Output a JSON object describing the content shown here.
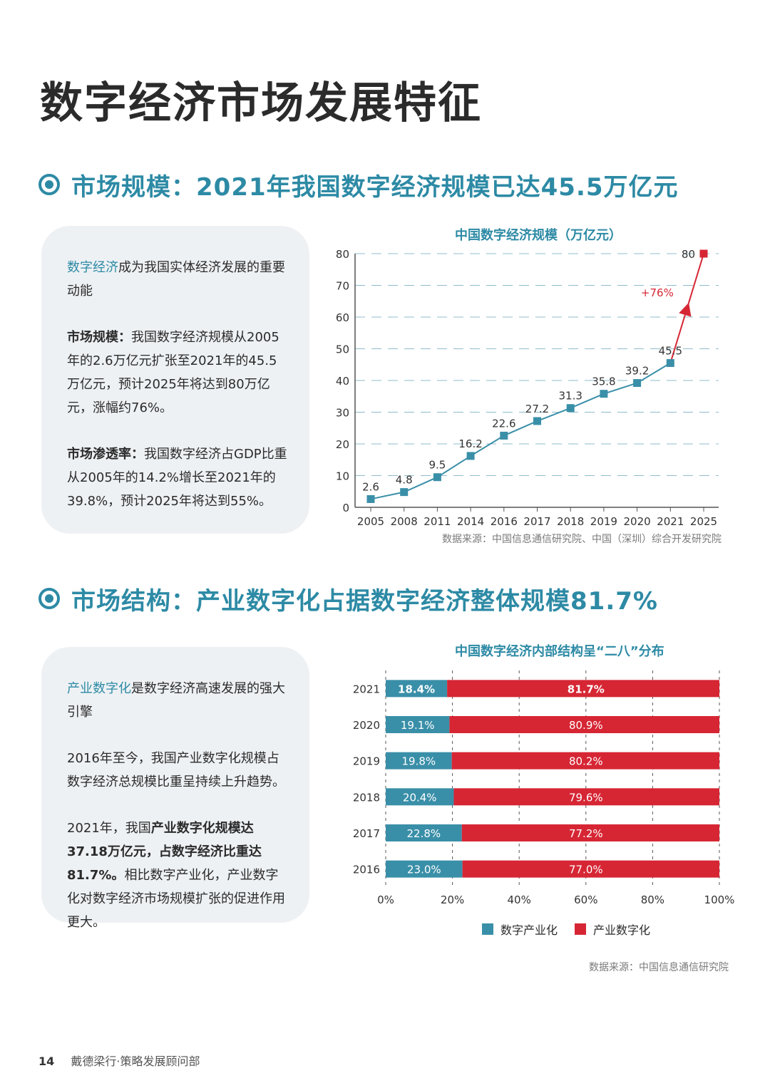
{
  "page": {
    "title": "数字经济市场发展特征",
    "footer_page": "14",
    "footer_text": "戴德梁行·策略发展顾问部"
  },
  "section1": {
    "heading": "市场规模：2021年我国数字经济规模已达45.5万亿元",
    "card": {
      "p1_hl": "数字经济",
      "p1_rest": "成为我国实体经济发展的重要动能",
      "p2_label": "市场规模：",
      "p2_text": "我国数字经济规模从2005年的2.6万亿元扩张至2021年的45.5万亿元，预计2025年将达到80万亿元，涨幅约76%。",
      "p3_label": "市场渗透率：",
      "p3_text": "我国数字经济占GDP比重从2005年的14.2%增长至2021年的39.8%，预计2025年将达到55%。"
    },
    "source": "数据来源：中国信息通信研究院、中国（深圳）综合开发研究院"
  },
  "section2": {
    "heading": "市场结构：产业数字化占据数字经济整体规模81.7%",
    "card": {
      "p1_hl": "产业数字化",
      "p1_rest": "是数字经济高速发展的强大引擎",
      "p2_text": "2016年至今，我国产业数字化规模占数字经济总规模比重呈持续上升趋势。",
      "p3_pre": "2021年，我国",
      "p3_bold": "产业数字化规模达37.18万亿元，占数字经济比重达81.7%。",
      "p3_post": "相比数字产业化，产业数字化对数字经济市场规模扩张的促进作用更大。"
    },
    "source": "数据来源：中国信息通信研究院"
  },
  "chart_data": [
    {
      "type": "line",
      "title": "中国数字经济规模（万亿元）",
      "x": [
        "2005",
        "2008",
        "2011",
        "2014",
        "2016",
        "2017",
        "2018",
        "2019",
        "2020",
        "2021",
        "2025"
      ],
      "series": [
        {
          "values": [
            2.6,
            4.8,
            9.5,
            16.2,
            22.6,
            27.2,
            31.3,
            35.8,
            39.2,
            45.5,
            80
          ],
          "color": "#3a8fa8",
          "forecast_color": "#d62634"
        }
      ],
      "ylim": [
        0,
        80
      ],
      "yticks": [
        0,
        10,
        20,
        30,
        40,
        50,
        60,
        70,
        80
      ],
      "annotations": [
        {
          "text": "+76%",
          "color": "#d62634"
        }
      ],
      "grid": "dashed-horizontal"
    },
    {
      "type": "bar",
      "stacked": true,
      "orientation": "horizontal",
      "title": "中国数字经济内部结构呈“二八”分布",
      "categories": [
        "2021",
        "2020",
        "2019",
        "2018",
        "2017",
        "2016"
      ],
      "series": [
        {
          "name": "数字产业化",
          "values": [
            18.4,
            19.1,
            19.8,
            20.4,
            22.8,
            23.0
          ],
          "labels": [
            "18.4%",
            "19.1%",
            "19.8%",
            "20.4%",
            "22.8%",
            "23.0%"
          ],
          "color": "#3a8fa8"
        },
        {
          "name": "产业数字化",
          "values": [
            81.7,
            80.9,
            80.2,
            79.6,
            77.2,
            77.0
          ],
          "labels": [
            "81.7%",
            "80.9%",
            "80.2%",
            "79.6%",
            "77.2%",
            "77.0%"
          ],
          "color": "#d62634"
        }
      ],
      "xticks": [
        "0%",
        "20%",
        "40%",
        "60%",
        "80%",
        "100%"
      ],
      "xlim": [
        0,
        100
      ],
      "legend": "bottom-center"
    }
  ]
}
